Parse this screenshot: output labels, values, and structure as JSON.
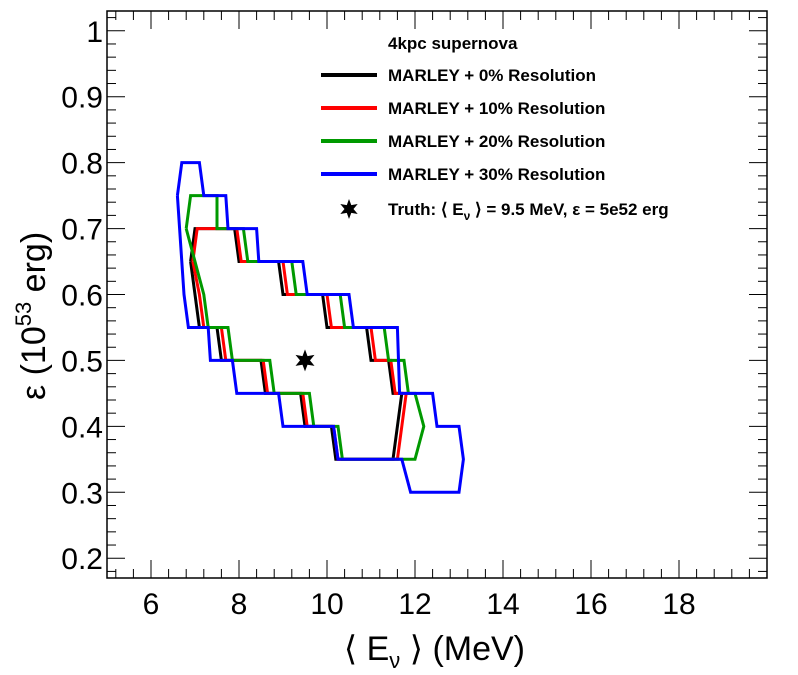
{
  "chart_data": {
    "type": "line",
    "title": "",
    "xlabel": "⟨ Eν ⟩ (MeV)",
    "xlabel_main": "⟨ E",
    "xlabel_sub": "ν",
    "xlabel_tail": " ⟩ (MeV)",
    "ylabel": "ε (10⁵³ erg)",
    "ylabel_main": "ε (10",
    "ylabel_sup": "53",
    "ylabel_tail": " erg)",
    "xlim": [
      5,
      20
    ],
    "ylim": [
      0.17,
      1.03
    ],
    "x_ticks": [
      6,
      8,
      10,
      12,
      14,
      16,
      18
    ],
    "x_ticklabels": [
      "6",
      "8",
      "10",
      "12",
      "14",
      "16",
      "18"
    ],
    "y_ticks": [
      0.2,
      0.3,
      0.4,
      0.5,
      0.6,
      0.7,
      0.8,
      0.9,
      1.0
    ],
    "y_ticklabels": [
      "0.2",
      "0.3",
      "0.4",
      "0.5",
      "0.6",
      "0.7",
      "0.8",
      "0.9",
      "1"
    ],
    "grid": false,
    "legend_position": "top-right",
    "legend_header": "4kpc supernova",
    "series": [
      {
        "name": "MARLEY + 0% Resolution",
        "color": "#000000",
        "points": [
          [
            6.9,
            0.65
          ],
          [
            7.0,
            0.7
          ],
          [
            7.9,
            0.7
          ],
          [
            8.0,
            0.65
          ],
          [
            8.9,
            0.65
          ],
          [
            9.0,
            0.6
          ],
          [
            9.9,
            0.6
          ],
          [
            10.0,
            0.55
          ],
          [
            10.9,
            0.55
          ],
          [
            11.0,
            0.5
          ],
          [
            11.4,
            0.5
          ],
          [
            11.5,
            0.45
          ],
          [
            11.7,
            0.45
          ],
          [
            11.5,
            0.35
          ],
          [
            10.2,
            0.35
          ],
          [
            10.1,
            0.4
          ],
          [
            9.5,
            0.4
          ],
          [
            9.4,
            0.45
          ],
          [
            8.6,
            0.45
          ],
          [
            8.5,
            0.5
          ],
          [
            7.6,
            0.5
          ],
          [
            7.5,
            0.55
          ],
          [
            7.1,
            0.55
          ],
          [
            7.0,
            0.6
          ],
          [
            6.9,
            0.65
          ]
        ]
      },
      {
        "name": "MARLEY + 10% Resolution",
        "color": "#ff0000",
        "points": [
          [
            6.95,
            0.65
          ],
          [
            7.05,
            0.7
          ],
          [
            7.95,
            0.7
          ],
          [
            8.05,
            0.65
          ],
          [
            9.0,
            0.65
          ],
          [
            9.1,
            0.6
          ],
          [
            10.0,
            0.6
          ],
          [
            10.1,
            0.55
          ],
          [
            11.0,
            0.55
          ],
          [
            11.1,
            0.5
          ],
          [
            11.45,
            0.5
          ],
          [
            11.55,
            0.45
          ],
          [
            11.8,
            0.45
          ],
          [
            11.6,
            0.35
          ],
          [
            10.25,
            0.35
          ],
          [
            10.15,
            0.4
          ],
          [
            9.55,
            0.4
          ],
          [
            9.45,
            0.45
          ],
          [
            8.65,
            0.45
          ],
          [
            8.55,
            0.5
          ],
          [
            7.7,
            0.5
          ],
          [
            7.6,
            0.55
          ],
          [
            7.2,
            0.55
          ],
          [
            7.1,
            0.6
          ],
          [
            6.95,
            0.65
          ]
        ]
      },
      {
        "name": "MARLEY + 20% Resolution",
        "color": "#009900",
        "points": [
          [
            6.8,
            0.7
          ],
          [
            6.9,
            0.75
          ],
          [
            7.5,
            0.75
          ],
          [
            7.5,
            0.7
          ],
          [
            8.1,
            0.7
          ],
          [
            8.2,
            0.65
          ],
          [
            9.2,
            0.65
          ],
          [
            9.3,
            0.6
          ],
          [
            10.3,
            0.6
          ],
          [
            10.4,
            0.55
          ],
          [
            11.3,
            0.55
          ],
          [
            11.4,
            0.5
          ],
          [
            11.75,
            0.5
          ],
          [
            11.85,
            0.45
          ],
          [
            12.0,
            0.45
          ],
          [
            12.2,
            0.4
          ],
          [
            12.0,
            0.35
          ],
          [
            10.35,
            0.35
          ],
          [
            10.25,
            0.4
          ],
          [
            9.7,
            0.4
          ],
          [
            9.6,
            0.45
          ],
          [
            8.8,
            0.45
          ],
          [
            8.7,
            0.5
          ],
          [
            7.85,
            0.5
          ],
          [
            7.75,
            0.55
          ],
          [
            7.3,
            0.55
          ],
          [
            7.2,
            0.6
          ],
          [
            6.8,
            0.7
          ]
        ]
      },
      {
        "name": "MARLEY + 30% Resolution",
        "color": "#0000ff",
        "points": [
          [
            6.6,
            0.75
          ],
          [
            6.7,
            0.8
          ],
          [
            7.1,
            0.8
          ],
          [
            7.2,
            0.75
          ],
          [
            7.7,
            0.75
          ],
          [
            7.75,
            0.7
          ],
          [
            8.4,
            0.7
          ],
          [
            8.45,
            0.65
          ],
          [
            9.45,
            0.65
          ],
          [
            9.55,
            0.6
          ],
          [
            10.5,
            0.6
          ],
          [
            10.6,
            0.55
          ],
          [
            11.6,
            0.55
          ],
          [
            11.65,
            0.45
          ],
          [
            12.4,
            0.45
          ],
          [
            12.5,
            0.4
          ],
          [
            13.0,
            0.4
          ],
          [
            13.1,
            0.35
          ],
          [
            13.0,
            0.3
          ],
          [
            11.9,
            0.3
          ],
          [
            11.7,
            0.35
          ],
          [
            10.25,
            0.35
          ],
          [
            10.15,
            0.4
          ],
          [
            9.0,
            0.4
          ],
          [
            8.9,
            0.45
          ],
          [
            7.95,
            0.45
          ],
          [
            7.85,
            0.5
          ],
          [
            7.35,
            0.5
          ],
          [
            7.3,
            0.55
          ],
          [
            6.85,
            0.55
          ],
          [
            6.75,
            0.6
          ],
          [
            6.7,
            0.65
          ],
          [
            6.6,
            0.75
          ]
        ]
      }
    ],
    "truth": {
      "label": "Truth: ⟨ Eν ⟩ = 9.5 MeV, ε = 5e52 erg",
      "label_main": "Truth: ⟨ E",
      "label_sub": "ν",
      "label_tail": " ⟩ = 9.5 MeV, ε = 5e52 erg",
      "x": 9.5,
      "y": 0.5,
      "marker": "star-icon",
      "color": "#000000"
    }
  }
}
